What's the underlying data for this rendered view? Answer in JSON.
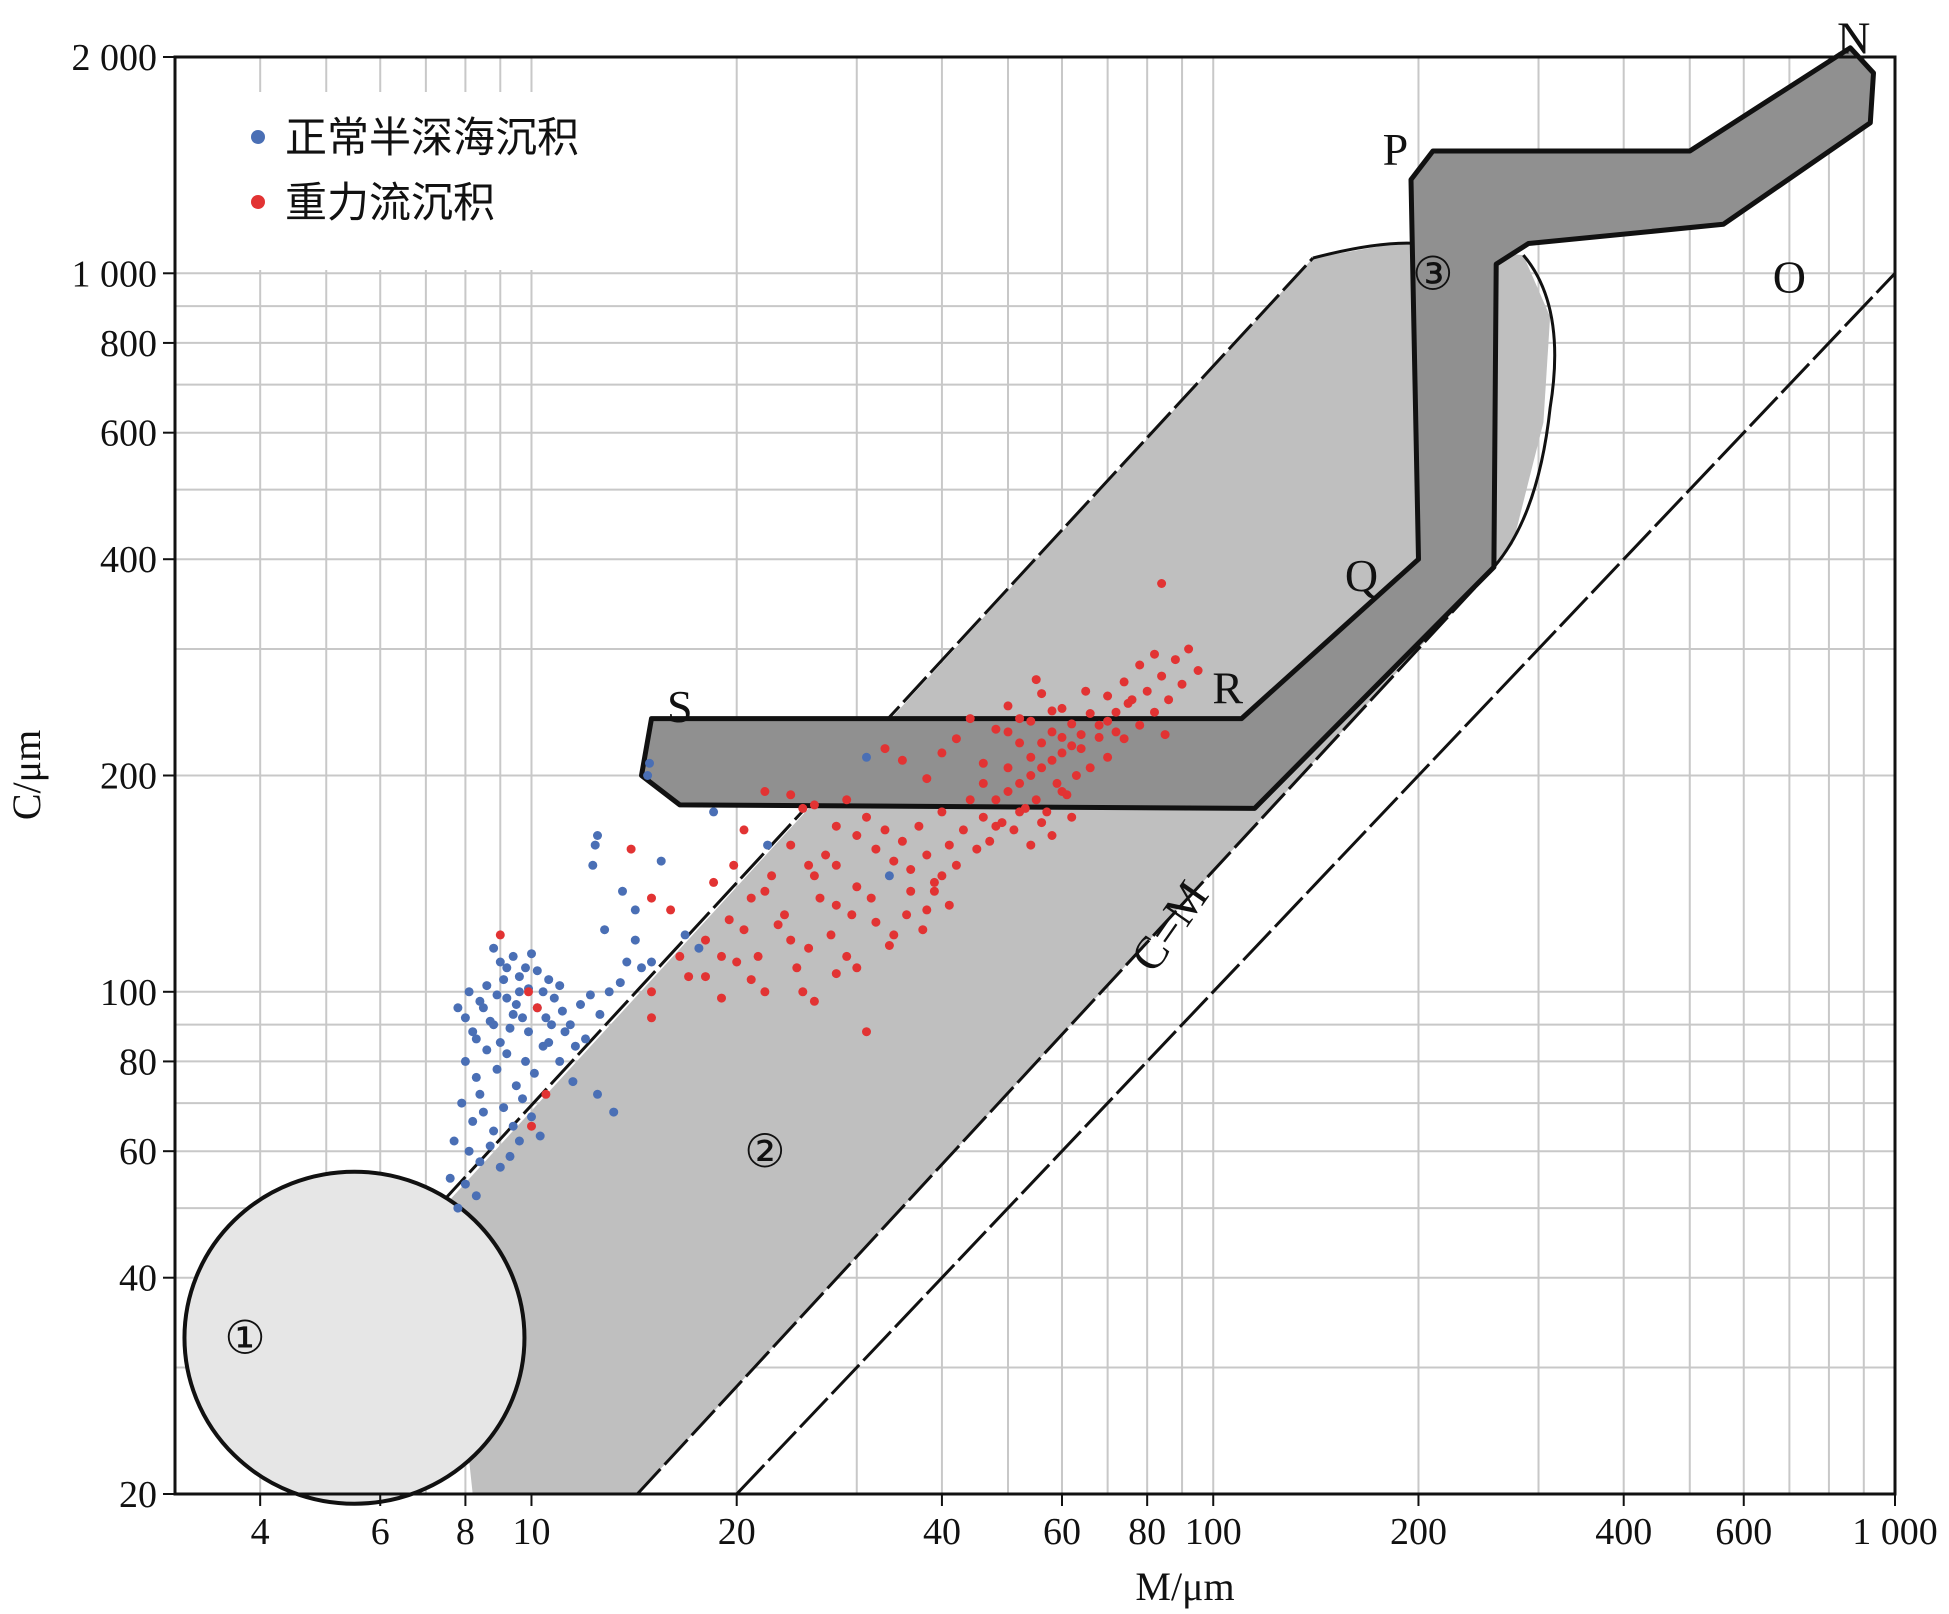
{
  "chart_data": {
    "type": "scatter",
    "title": "",
    "xlabel": "M/μm",
    "ylabel": "C/μm",
    "x_scale": "log",
    "y_scale": "log",
    "xlim": [
      3,
      1000
    ],
    "ylim": [
      20,
      2000
    ],
    "x_tick_labels": [
      {
        "value": 4,
        "label": "4"
      },
      {
        "value": 6,
        "label": "6"
      },
      {
        "value": 8,
        "label": "8"
      },
      {
        "value": 10,
        "label": "10"
      },
      {
        "value": 20,
        "label": "20"
      },
      {
        "value": 40,
        "label": "40"
      },
      {
        "value": 60,
        "label": "60"
      },
      {
        "value": 80,
        "label": "80"
      },
      {
        "value": 100,
        "label": "100"
      },
      {
        "value": 200,
        "label": "200"
      },
      {
        "value": 400,
        "label": "400"
      },
      {
        "value": 600,
        "label": "600"
      },
      {
        "value": 1000,
        "label": "1 000"
      }
    ],
    "y_tick_labels": [
      {
        "value": 20,
        "label": "20"
      },
      {
        "value": 40,
        "label": "40"
      },
      {
        "value": 60,
        "label": "60"
      },
      {
        "value": 80,
        "label": "80"
      },
      {
        "value": 100,
        "label": "100"
      },
      {
        "value": 200,
        "label": "200"
      },
      {
        "value": 400,
        "label": "400"
      },
      {
        "value": 600,
        "label": "600"
      },
      {
        "value": 800,
        "label": "800"
      },
      {
        "value": 1000,
        "label": "1 000"
      },
      {
        "value": 2000,
        "label": "2 000"
      }
    ],
    "grid": true,
    "legend_position": "top-left",
    "legend": [
      {
        "name": "正常半深海沉积",
        "color": "#4a6fb5"
      },
      {
        "name": "重力流沉积",
        "color": "#e23333"
      }
    ],
    "reference_line": {
      "label": "C=M",
      "points": [
        [
          20,
          20
        ],
        [
          1000,
          1000
        ]
      ]
    },
    "zones": [
      {
        "label": "①",
        "fill": "#e6e6e6",
        "at": [
          3.8,
          33
        ]
      },
      {
        "label": "②",
        "fill": "#bfbfbf",
        "at": [
          22,
          60
        ]
      },
      {
        "label": "③",
        "fill": "#909090",
        "at": [
          210,
          1000
        ]
      }
    ],
    "segment_labels": [
      {
        "label": "N",
        "at": [
          870,
          2130
        ]
      },
      {
        "label": "O",
        "at": [
          700,
          990
        ]
      },
      {
        "label": "P",
        "at": [
          185,
          1490
        ]
      },
      {
        "label": "Q",
        "at": [
          165,
          380
        ]
      },
      {
        "label": "R",
        "at": [
          105,
          265
        ]
      },
      {
        "label": "S",
        "at": [
          16.5,
          250
        ]
      }
    ],
    "series": [
      {
        "name": "正常半深海沉积",
        "color": "#4a6fb5",
        "points": [
          [
            7.8,
            95
          ],
          [
            8.0,
            92
          ],
          [
            8.2,
            88
          ],
          [
            8.4,
            97
          ],
          [
            8.6,
            102
          ],
          [
            8.8,
            90
          ],
          [
            9.0,
            85
          ],
          [
            9.2,
            98
          ],
          [
            9.4,
            93
          ],
          [
            9.6,
            105
          ],
          [
            8.1,
            100
          ],
          [
            8.3,
            86
          ],
          [
            8.5,
            95
          ],
          [
            8.7,
            91
          ],
          [
            8.9,
            99
          ],
          [
            9.1,
            104
          ],
          [
            9.3,
            89
          ],
          [
            9.5,
            96
          ],
          [
            9.7,
            92
          ],
          [
            9.9,
            101
          ],
          [
            8.0,
            80
          ],
          [
            8.3,
            76
          ],
          [
            8.6,
            83
          ],
          [
            8.9,
            78
          ],
          [
            9.2,
            82
          ],
          [
            9.5,
            74
          ],
          [
            9.8,
            80
          ],
          [
            10.1,
            77
          ],
          [
            10.4,
            84
          ],
          [
            8.4,
            72
          ],
          [
            7.9,
            70
          ],
          [
            8.2,
            66
          ],
          [
            8.5,
            68
          ],
          [
            8.8,
            64
          ],
          [
            9.1,
            69
          ],
          [
            9.4,
            65
          ],
          [
            9.7,
            71
          ],
          [
            10.0,
            67
          ],
          [
            10.3,
            63
          ],
          [
            7.7,
            62
          ],
          [
            8.1,
            60
          ],
          [
            8.4,
            58
          ],
          [
            8.7,
            61
          ],
          [
            9.0,
            57
          ],
          [
            9.3,
            59
          ],
          [
            9.6,
            62
          ],
          [
            7.6,
            55
          ],
          [
            8.0,
            54
          ],
          [
            8.3,
            52
          ],
          [
            7.8,
            50
          ],
          [
            10.2,
            95
          ],
          [
            10.5,
            92
          ],
          [
            10.8,
            98
          ],
          [
            11.1,
            94
          ],
          [
            11.4,
            90
          ],
          [
            10.6,
            104
          ],
          [
            11.0,
            102
          ],
          [
            11.8,
            96
          ],
          [
            12.2,
            99
          ],
          [
            12.6,
            93
          ],
          [
            9.0,
            110
          ],
          [
            9.4,
            112
          ],
          [
            9.8,
            108
          ],
          [
            10.2,
            107
          ],
          [
            10.0,
            113
          ],
          [
            8.8,
            115
          ],
          [
            10.6,
            85
          ],
          [
            11.2,
            88
          ],
          [
            11.6,
            84
          ],
          [
            12.0,
            86
          ],
          [
            9.2,
            108
          ],
          [
            9.6,
            100
          ],
          [
            10.4,
            100
          ],
          [
            11.0,
            80
          ],
          [
            11.5,
            75
          ],
          [
            12.5,
            72
          ],
          [
            13.2,
            68
          ],
          [
            9.9,
            88
          ],
          [
            10.7,
            90
          ],
          [
            13.0,
            100
          ],
          [
            13.5,
            103
          ],
          [
            13.8,
            110
          ],
          [
            14.5,
            108
          ],
          [
            12.3,
            150
          ],
          [
            12.4,
            160
          ],
          [
            12.5,
            165
          ],
          [
            13.6,
            138
          ],
          [
            14.2,
            130
          ],
          [
            15.0,
            110
          ],
          [
            15.5,
            152
          ],
          [
            14.8,
            200
          ],
          [
            14.9,
            208
          ],
          [
            18.5,
            178
          ],
          [
            22.2,
            160
          ],
          [
            31.0,
            212
          ],
          [
            33.5,
            145
          ],
          [
            16.8,
            120
          ],
          [
            17.6,
            115
          ],
          [
            14.2,
            118
          ],
          [
            12.8,
            122
          ]
        ]
      },
      {
        "name": "重力流沉积",
        "color": "#e23333",
        "points": [
          [
            9.0,
            120
          ],
          [
            9.9,
            100
          ],
          [
            10.2,
            95
          ],
          [
            10.5,
            72
          ],
          [
            10.0,
            65
          ],
          [
            14.0,
            158
          ],
          [
            15.0,
            135
          ],
          [
            15.0,
            100
          ],
          [
            15.0,
            92
          ],
          [
            16.0,
            130
          ],
          [
            16.5,
            112
          ],
          [
            17.0,
            105
          ],
          [
            18.0,
            118
          ],
          [
            19.0,
            112
          ],
          [
            19.5,
            126
          ],
          [
            20.5,
            122
          ],
          [
            21.5,
            112
          ],
          [
            22.0,
            138
          ],
          [
            23.0,
            124
          ],
          [
            24.0,
            118
          ],
          [
            18.5,
            142
          ],
          [
            19.8,
            150
          ],
          [
            20.5,
            168
          ],
          [
            21.0,
            135
          ],
          [
            22.5,
            145
          ],
          [
            23.5,
            128
          ],
          [
            24.5,
            108
          ],
          [
            25.5,
            115
          ],
          [
            26.5,
            135
          ],
          [
            27.5,
            120
          ],
          [
            18.0,
            105
          ],
          [
            19.0,
            98
          ],
          [
            20.0,
            110
          ],
          [
            21.0,
            104
          ],
          [
            22.0,
            100
          ],
          [
            25.0,
            100
          ],
          [
            26.0,
            97
          ],
          [
            28.0,
            106
          ],
          [
            29.0,
            112
          ],
          [
            30.0,
            108
          ],
          [
            22.0,
            190
          ],
          [
            24.0,
            188
          ],
          [
            25.0,
            180
          ],
          [
            26.0,
            182
          ],
          [
            28.0,
            170
          ],
          [
            29.0,
            185
          ],
          [
            30.0,
            165
          ],
          [
            31.0,
            175
          ],
          [
            32.0,
            158
          ],
          [
            33.0,
            168
          ],
          [
            34.0,
            152
          ],
          [
            35.0,
            162
          ],
          [
            36.0,
            148
          ],
          [
            37.0,
            170
          ],
          [
            38.0,
            155
          ],
          [
            39.0,
            142
          ],
          [
            40.0,
            178
          ],
          [
            41.0,
            160
          ],
          [
            42.0,
            150
          ],
          [
            43.0,
            168
          ],
          [
            45.0,
            158
          ],
          [
            46.0,
            175
          ],
          [
            47.0,
            162
          ],
          [
            48.0,
            185
          ],
          [
            49.0,
            172
          ],
          [
            50.0,
            190
          ],
          [
            51.0,
            168
          ],
          [
            52.0,
            195
          ],
          [
            53.0,
            180
          ],
          [
            54.0,
            200
          ],
          [
            55.0,
            185
          ],
          [
            56.0,
            205
          ],
          [
            57.0,
            178
          ],
          [
            58.0,
            210
          ],
          [
            59.0,
            195
          ],
          [
            60.0,
            215
          ],
          [
            61.0,
            188
          ],
          [
            62.0,
            220
          ],
          [
            63.0,
            200
          ],
          [
            64.0,
            228
          ],
          [
            66.0,
            205
          ],
          [
            68.0,
            235
          ],
          [
            70.0,
            212
          ],
          [
            72.0,
            245
          ],
          [
            74.0,
            225
          ],
          [
            76.0,
            255
          ],
          [
            78.0,
            235
          ],
          [
            80.0,
            262
          ],
          [
            82.0,
            245
          ],
          [
            84.0,
            275
          ],
          [
            86.0,
            255
          ],
          [
            88.0,
            290
          ],
          [
            90.0,
            268
          ],
          [
            92.0,
            300
          ],
          [
            84.0,
            370
          ],
          [
            95.0,
            280
          ],
          [
            82.0,
            295
          ],
          [
            78.0,
            285
          ],
          [
            74.0,
            270
          ],
          [
            70.0,
            258
          ],
          [
            33.0,
            218
          ],
          [
            35.0,
            210
          ],
          [
            38.0,
            198
          ],
          [
            40.0,
            215
          ],
          [
            42.0,
            225
          ],
          [
            44.0,
            240
          ],
          [
            46.0,
            208
          ],
          [
            48.0,
            232
          ],
          [
            50.0,
            250
          ],
          [
            52.0,
            222
          ],
          [
            54.0,
            238
          ],
          [
            56.0,
            260
          ],
          [
            58.0,
            230
          ],
          [
            60.0,
            248
          ],
          [
            62.0,
            236
          ],
          [
            64.0,
            218
          ],
          [
            66.0,
            244
          ],
          [
            68.0,
            226
          ],
          [
            72.0,
            230
          ],
          [
            85.0,
            228
          ],
          [
            31.0,
            88
          ],
          [
            28.0,
            132
          ],
          [
            30.0,
            140
          ],
          [
            32.0,
            125
          ],
          [
            34.0,
            120
          ],
          [
            36.0,
            138
          ],
          [
            38.0,
            130
          ],
          [
            40.0,
            145
          ],
          [
            25.5,
            150
          ],
          [
            27.0,
            155
          ],
          [
            44.0,
            185
          ],
          [
            46.0,
            195
          ],
          [
            48.0,
            170
          ],
          [
            50.0,
            205
          ],
          [
            52.0,
            178
          ],
          [
            54.0,
            160
          ],
          [
            56.0,
            172
          ],
          [
            58.0,
            165
          ],
          [
            60.0,
            190
          ],
          [
            62.0,
            175
          ],
          [
            24.0,
            160
          ],
          [
            26.0,
            145
          ],
          [
            28.0,
            150
          ],
          [
            29.5,
            128
          ],
          [
            31.5,
            135
          ],
          [
            33.5,
            116
          ],
          [
            35.5,
            128
          ],
          [
            37.5,
            122
          ],
          [
            39.0,
            138
          ],
          [
            41.0,
            132
          ],
          [
            50.0,
            230
          ],
          [
            52.0,
            240
          ],
          [
            54.0,
            212
          ],
          [
            56.0,
            222
          ],
          [
            58.0,
            246
          ],
          [
            60.0,
            226
          ],
          [
            70.0,
            238
          ],
          [
            75.0,
            252
          ],
          [
            65.0,
            262
          ],
          [
            55.0,
            272
          ]
        ]
      }
    ]
  }
}
